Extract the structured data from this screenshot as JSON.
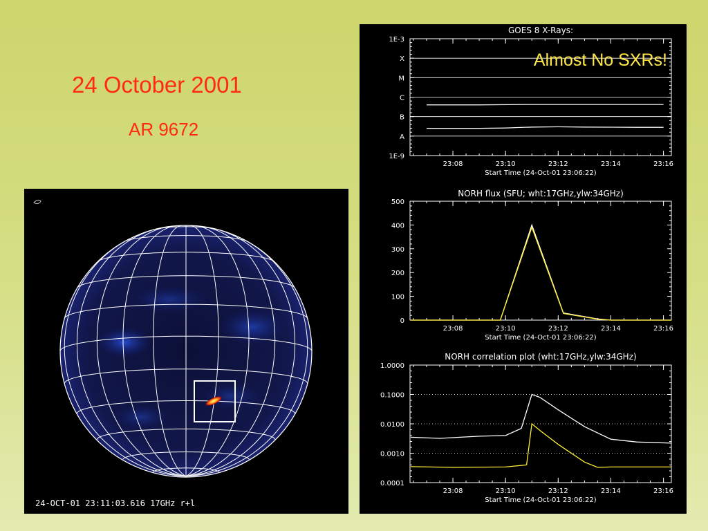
{
  "slide": {
    "title": "24 October 2001",
    "subtitle": "AR 9672"
  },
  "sun_image": {
    "caption": "24-OCT-01  23:11:03.616 17GHz r+l"
  },
  "annotation": {
    "text": "Almost No SXRs!",
    "color": "#ffe84a"
  },
  "colors": {
    "white_series": "#ffffff",
    "yellow_series": "#ffee33",
    "text_red": "#ff2a12"
  },
  "chart_data": [
    {
      "type": "line",
      "title": "GOES 8 X-Rays:",
      "xlabel": "Start Time (24-Oct-01 23:06:22)",
      "x_tick_labels": [
        "23:08",
        "23:10",
        "23:12",
        "23:14",
        "23:16"
      ],
      "y_tick_labels": [
        "1E-3",
        "X",
        "M",
        "C",
        "B",
        "A",
        "1E-9"
      ],
      "y_scale": "log",
      "ylim": [
        1e-09,
        0.001
      ],
      "grid": "horizontal",
      "series": [
        {
          "color": "#ffffff",
          "x": [
            "23:07",
            "23:09",
            "23:11",
            "23:13",
            "23:15",
            "23:16"
          ],
          "y": [
            4e-07,
            4e-07,
            4.2e-07,
            4.2e-07,
            4.2e-07,
            4.2e-07
          ]
        },
        {
          "color": "#ffffff",
          "x": [
            "23:07",
            "23:09",
            "23:10",
            "23:11",
            "23:12",
            "23:13",
            "23:15",
            "23:16"
          ],
          "y": [
            2.5e-08,
            2.5e-08,
            2.6e-08,
            2.9e-08,
            3e-08,
            2.9e-08,
            2.8e-08,
            2.8e-08
          ]
        }
      ]
    },
    {
      "type": "line",
      "title": "NORH flux (SFU; wht:17GHz,ylw:34GHz)",
      "xlabel": "Start Time (24-Oct-01 23:06:22)",
      "x_tick_labels": [
        "23:08",
        "23:10",
        "23:12",
        "23:14",
        "23:16"
      ],
      "y_tick_labels": [
        "0",
        "100",
        "200",
        "300",
        "400",
        "500"
      ],
      "ylim": [
        0,
        500
      ],
      "series": [
        {
          "color": "#ffffff",
          "x": [
            "23:06.4",
            "23:09.8",
            "23:11",
            "23:12.2",
            "23:13.5",
            "23:14",
            "23:16.3"
          ],
          "y": [
            0,
            0,
            400,
            30,
            5,
            0,
            0
          ]
        },
        {
          "color": "#ffee33",
          "x": [
            "23:06.4",
            "23:09.8",
            "23:11",
            "23:12.2",
            "23:13.5",
            "23:14",
            "23:16.3"
          ],
          "y": [
            0,
            0,
            390,
            28,
            4,
            0,
            0
          ]
        }
      ]
    },
    {
      "type": "line",
      "title": "NORH correlation plot (wht:17GHz,ylw:34GHz)",
      "xlabel": "Start Time (24-Oct-01 23:06:22)",
      "x_tick_labels": [
        "23:08",
        "23:10",
        "23:12",
        "23:14",
        "23:16"
      ],
      "y_tick_labels": [
        "1.0000",
        "0.1000",
        "0.0100",
        "0.0010",
        "0.0001"
      ],
      "y_scale": "log",
      "ylim": [
        0.0001,
        1.0
      ],
      "grid": "dotted at 0.1, 0.01, 0.001",
      "series": [
        {
          "color": "#ffffff",
          "x": [
            "23:06.4",
            "23:07.5",
            "23:09",
            "23:10",
            "23:10.6",
            "23:11",
            "23:11.3",
            "23:12",
            "23:13",
            "23:14",
            "23:15",
            "23:16.3"
          ],
          "y": [
            0.0035,
            0.0032,
            0.0038,
            0.004,
            0.007,
            0.1,
            0.08,
            0.03,
            0.008,
            0.003,
            0.0024,
            0.0022
          ]
        },
        {
          "color": "#ffee33",
          "x": [
            "23:06.4",
            "23:08",
            "23:10",
            "23:10.8",
            "23:11",
            "23:11.3",
            "23:12",
            "23:13",
            "23:13.5",
            "23:14",
            "23:16.3"
          ],
          "y": [
            0.00035,
            0.00033,
            0.00034,
            0.0004,
            0.01,
            0.006,
            0.002,
            0.0005,
            0.00033,
            0.00034,
            0.00034
          ]
        }
      ]
    }
  ]
}
